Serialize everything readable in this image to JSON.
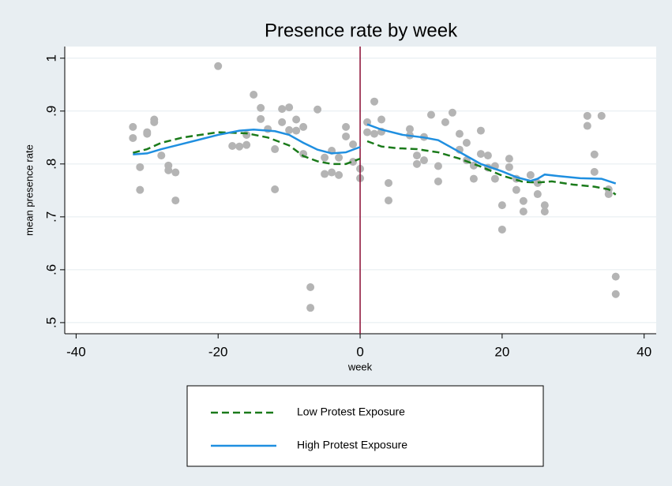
{
  "chart_data": {
    "type": "line",
    "title": "Presence rate by week",
    "x_label": "week",
    "y_label": "mean presence rate",
    "xlim": [
      -41.6,
      41.7
    ],
    "ylim": [
      0.479,
      1.022
    ],
    "xticks": [
      -40,
      -20,
      0,
      20,
      40
    ],
    "yticks": [
      {
        "value": 0.5,
        "label": ".5"
      },
      {
        "value": 0.6,
        "label": ".6"
      },
      {
        "value": 0.7,
        "label": ".7"
      },
      {
        "value": 0.8,
        "label": ".8"
      },
      {
        "value": 0.9,
        "label": ".9"
      },
      1
    ],
    "grid": true,
    "vline": {
      "x": 0,
      "color": "#8b0d33"
    },
    "scatter": {
      "color": "#b4b4b4",
      "x": [
        -32,
        -32,
        -31,
        -31,
        -30,
        -30,
        -29,
        -29,
        -28,
        -27,
        -27,
        -26,
        -26,
        -20,
        -18,
        -17,
        -16,
        -16,
        -15,
        -14,
        -14,
        -13,
        -12,
        -12,
        -11,
        -11,
        -10,
        -10,
        -9,
        -9,
        -8,
        -8,
        -7,
        -7,
        -6,
        -5,
        -5,
        -4,
        -4,
        -3,
        -3,
        -2,
        -2,
        -1,
        -1,
        0,
        0,
        1,
        1,
        2,
        2,
        3,
        3,
        4,
        4,
        7,
        7,
        8,
        8,
        9,
        9,
        10,
        11,
        11,
        12,
        13,
        14,
        14,
        15,
        15,
        16,
        16,
        17,
        17,
        18,
        18,
        19,
        19,
        20,
        20,
        21,
        21,
        22,
        22,
        23,
        23,
        24,
        25,
        25,
        26,
        26,
        32,
        32,
        33,
        33,
        34,
        35,
        35,
        36,
        36
      ],
      "y": [
        0.87,
        0.849,
        0.794,
        0.751,
        0.86,
        0.857,
        0.884,
        0.879,
        0.816,
        0.797,
        0.788,
        0.784,
        0.731,
        0.985,
        0.834,
        0.833,
        0.855,
        0.836,
        0.931,
        0.906,
        0.885,
        0.866,
        0.828,
        0.752,
        0.904,
        0.879,
        0.907,
        0.864,
        0.884,
        0.863,
        0.87,
        0.819,
        0.567,
        0.528,
        0.903,
        0.812,
        0.781,
        0.825,
        0.784,
        0.812,
        0.779,
        0.87,
        0.852,
        0.837,
        0.804,
        0.791,
        0.773,
        0.879,
        0.86,
        0.918,
        0.857,
        0.884,
        0.861,
        0.764,
        0.731,
        0.866,
        0.854,
        0.816,
        0.8,
        0.851,
        0.807,
        0.893,
        0.796,
        0.767,
        0.879,
        0.897,
        0.857,
        0.827,
        0.84,
        0.807,
        0.797,
        0.772,
        0.863,
        0.819,
        0.816,
        0.793,
        0.796,
        0.772,
        0.722,
        0.676,
        0.81,
        0.794,
        0.772,
        0.751,
        0.73,
        0.71,
        0.779,
        0.764,
        0.743,
        0.722,
        0.71,
        0.891,
        0.872,
        0.818,
        0.785,
        0.891,
        0.752,
        0.743,
        0.587,
        0.554
      ]
    },
    "series": [
      {
        "name": "Low Protest Exposure",
        "color": "#1a7a1a",
        "dashed": true,
        "x": [
          -32,
          -30,
          -28,
          -25,
          -20,
          -16,
          -13,
          -10,
          -8,
          -6,
          -4,
          -2,
          0,
          0.5,
          1,
          3,
          5,
          8,
          11,
          14,
          17,
          20,
          23,
          25,
          27,
          30,
          33,
          35,
          36
        ],
        "values": [
          0.821,
          0.828,
          0.84,
          0.85,
          0.86,
          0.858,
          0.85,
          0.835,
          0.815,
          0.805,
          0.8,
          0.8,
          0.81,
          null,
          0.843,
          0.833,
          0.83,
          0.828,
          0.822,
          0.81,
          0.795,
          0.778,
          0.766,
          0.765,
          0.767,
          0.761,
          0.757,
          0.752,
          0.742
        ]
      },
      {
        "name": "High Protest Exposure",
        "color": "#1f8fe0",
        "dashed": false,
        "x": [
          -32,
          -30,
          -28,
          -25,
          -20,
          -17,
          -15,
          -12,
          -10,
          -8,
          -6,
          -4,
          -2,
          0,
          0.5,
          1,
          3,
          6,
          9,
          11,
          13,
          15,
          17,
          20,
          22,
          24,
          25,
          26,
          28,
          31,
          34,
          36
        ],
        "values": [
          0.818,
          0.82,
          0.828,
          0.838,
          0.855,
          0.863,
          0.865,
          0.862,
          0.855,
          0.84,
          0.827,
          0.82,
          0.822,
          0.832,
          null,
          0.875,
          0.865,
          0.855,
          0.85,
          0.845,
          0.83,
          0.815,
          0.8,
          0.786,
          0.775,
          0.768,
          0.772,
          0.78,
          0.777,
          0.773,
          0.772,
          0.763
        ]
      }
    ]
  }
}
